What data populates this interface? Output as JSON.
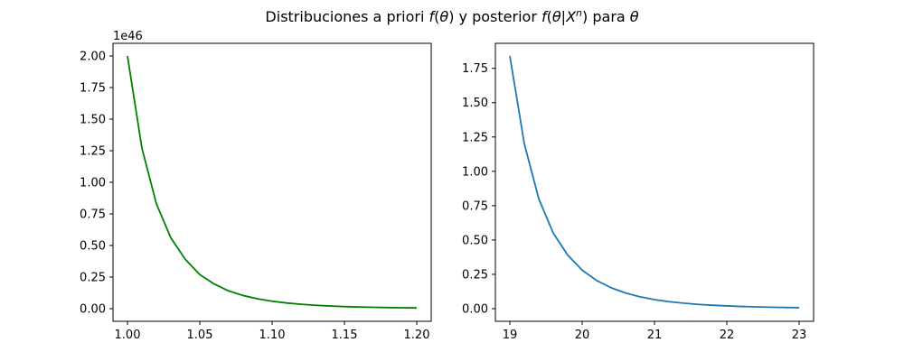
{
  "figure": {
    "title_plain": "Distribuciones a priori ",
    "title_f1": "f",
    "title_paren1": "(",
    "title_theta1": "θ",
    "title_paren1_close": ")",
    "title_mid": " y posterior ",
    "title_f2": "f",
    "title_paren2": "(",
    "title_theta2": "θ",
    "title_bar": "|",
    "title_X": "X",
    "title_n": "n",
    "title_paren2_close": ")",
    "title_tail": " para ",
    "title_theta3": "θ"
  },
  "chart_data": [
    {
      "type": "line",
      "id": "prior",
      "x_range": [
        1.0,
        1.2
      ],
      "xlim": [
        0.99,
        1.21
      ],
      "ylim": [
        -0.1,
        2.1
      ],
      "y_offset_text": "1e46",
      "xticks": [
        1.0,
        1.05,
        1.1,
        1.15,
        1.2
      ],
      "xtick_labels": [
        "1.00",
        "1.05",
        "1.10",
        "1.15",
        "1.20"
      ],
      "yticks": [
        0,
        0.25,
        0.5,
        0.75,
        1.0,
        1.25,
        1.5,
        1.75,
        2.0
      ],
      "ytick_labels": [
        "0.00",
        "0.25",
        "0.50",
        "0.75",
        "1.00",
        "1.25",
        "1.50",
        "1.75",
        "2.00"
      ],
      "color": "#008000",
      "x": [
        1.0,
        1.01,
        1.02,
        1.03,
        1.04,
        1.05,
        1.06,
        1.07,
        1.08,
        1.09,
        1.1,
        1.11,
        1.12,
        1.13,
        1.14,
        1.15,
        1.16,
        1.17,
        1.18,
        1.19,
        1.2
      ],
      "y": [
        2.0,
        1.27,
        0.83,
        0.56,
        0.39,
        0.27,
        0.195,
        0.14,
        0.104,
        0.078,
        0.059,
        0.045,
        0.035,
        0.027,
        0.021,
        0.0165,
        0.013,
        0.0105,
        0.0085,
        0.007,
        0.0058
      ]
    },
    {
      "type": "line",
      "id": "posterior",
      "x_range": [
        19,
        23
      ],
      "xlim": [
        18.8,
        23.2
      ],
      "ylim": [
        -0.092,
        1.932
      ],
      "y_offset_text": "",
      "xticks": [
        19,
        20,
        21,
        22,
        23
      ],
      "xtick_labels": [
        "19",
        "20",
        "21",
        "22",
        "23"
      ],
      "yticks": [
        0,
        0.25,
        0.5,
        0.75,
        1.0,
        1.25,
        1.5,
        1.75
      ],
      "ytick_labels": [
        "0.00",
        "0.25",
        "0.50",
        "0.75",
        "1.00",
        "1.25",
        "1.50",
        "1.75"
      ],
      "color": "#1f77b4",
      "x": [
        19.0,
        19.2,
        19.4,
        19.6,
        19.8,
        20.0,
        20.2,
        20.4,
        20.6,
        20.8,
        21.0,
        21.2,
        21.4,
        21.6,
        21.8,
        22.0,
        22.2,
        22.4,
        22.6,
        22.8,
        23.0
      ],
      "y": [
        1.84,
        1.2,
        0.8,
        0.55,
        0.39,
        0.28,
        0.205,
        0.152,
        0.114,
        0.086,
        0.066,
        0.051,
        0.04,
        0.031,
        0.025,
        0.02,
        0.016,
        0.013,
        0.0105,
        0.0085,
        0.007
      ]
    }
  ]
}
